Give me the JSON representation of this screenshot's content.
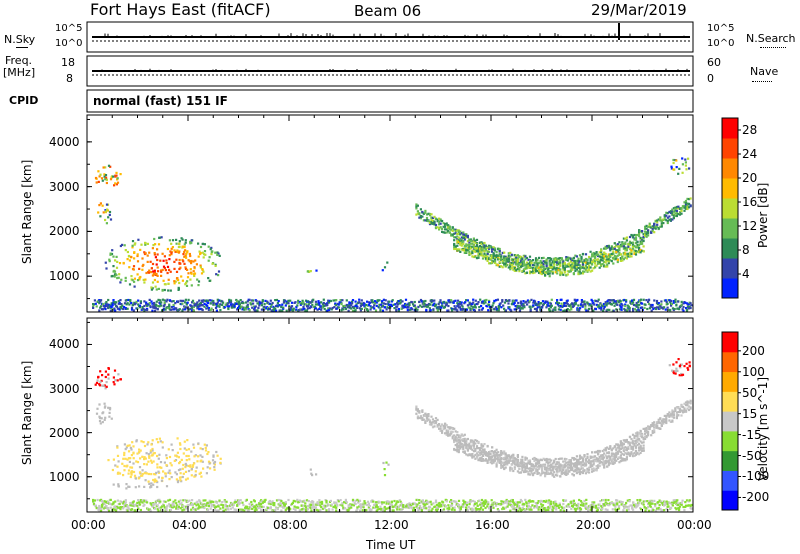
{
  "header": {
    "title": "Fort Hays East (fitACF)",
    "beam": "Beam 06",
    "date": "29/Mar/2019"
  },
  "top_panels": {
    "left_label_1": "N.Sky",
    "right_label_1": "N.Search",
    "left_ticks_1": [
      "10^5",
      "10^0"
    ],
    "right_ticks_1": [
      "10^5",
      "10^0"
    ],
    "left_label_2a": "Freq.",
    "left_label_2b": "[MHz]",
    "left_ticks_2": [
      "18",
      "8"
    ],
    "right_ticks_2": [
      "60",
      "0"
    ],
    "right_label_2": "Nave",
    "cpid_label": "CPID",
    "cpid_text": "normal (fast) 151 IF"
  },
  "colors": {
    "velocity_scale": [
      "#ff0000",
      "#ff6600",
      "#ffaa00",
      "#ffdd55",
      "#c8c8c8",
      "#88dd33",
      "#339933",
      "#3355ff",
      "#0000ff"
    ],
    "power_scale": [
      "#0022ff",
      "#3344aa",
      "#2e8b57",
      "#66bb55",
      "#bbdd33",
      "#ffbb00",
      "#ff8800",
      "#ff4400",
      "#ff0000"
    ],
    "ground_scatter": "#bbbbbb"
  },
  "chart_data": [
    {
      "type": "heatmap",
      "title": "Power",
      "xlabel": "",
      "ylabel": "Slant Range [km]",
      "x_ticks": [
        "00:00",
        "04:00",
        "08:00",
        "12:00",
        "16:00",
        "20:00",
        "00:00"
      ],
      "y_ticks": [
        "1000",
        "2000",
        "3000",
        "4000"
      ],
      "ylim": [
        200,
        4600
      ],
      "xlim_hours": [
        0,
        24
      ],
      "colorbar_label": "Power [dB]",
      "colorbar_ticks": [
        "4",
        "8",
        "12",
        "16",
        "20",
        "24",
        "28"
      ],
      "colorbar_range": [
        0,
        30
      ],
      "regions": [
        {
          "t0": 0.7,
          "t1": 5.3,
          "r0": 700,
          "r1": 1900,
          "value": 26,
          "profile": "hot"
        },
        {
          "t0": 0.2,
          "t1": 1.3,
          "r0": 3000,
          "r1": 3500,
          "value": 17,
          "profile": "mixed"
        },
        {
          "t0": 0.3,
          "t1": 1.0,
          "r0": 2200,
          "r1": 2700,
          "value": 12,
          "profile": "mixed"
        },
        {
          "t0": 8.7,
          "t1": 9.1,
          "r0": 1050,
          "r1": 1250,
          "value": 12,
          "profile": "mixed"
        },
        {
          "t0": 11.6,
          "t1": 11.95,
          "r0": 1050,
          "r1": 1350,
          "value": 12,
          "profile": "mixed"
        },
        {
          "t0": 23.0,
          "t1": 23.9,
          "r0": 3300,
          "r1": 3700,
          "value": 8,
          "profile": "mixed"
        }
      ],
      "arcs": [
        {
          "t0": 13.0,
          "t1": 23.9,
          "r_start": 2500,
          "r_min": 1300,
          "t_min": 18.3,
          "r_end": 2700,
          "value": 10
        },
        {
          "t0": 14.5,
          "t1": 22.0,
          "r_start": 1750,
          "r_min": 1150,
          "t_min": 18.5,
          "r_end": 1700,
          "value": 12
        }
      ],
      "near_range_band": {
        "r0": 250,
        "r1": 500,
        "value": 6
      }
    },
    {
      "type": "heatmap",
      "title": "Velocity",
      "xlabel": "Time UT",
      "ylabel": "Slant Range [km]",
      "x_ticks": [
        "00:00",
        "04:00",
        "08:00",
        "12:00",
        "16:00",
        "20:00",
        "00:00"
      ],
      "y_ticks": [
        "1000",
        "2000",
        "3000",
        "4000"
      ],
      "ylim": [
        200,
        4600
      ],
      "xlim_hours": [
        0,
        24
      ],
      "colorbar_label": "Velocity [m s^-1]",
      "colorbar_ticks": [
        "200",
        "100",
        "50",
        "15",
        "-15",
        "-50",
        "-100",
        "-200"
      ],
      "colorbar_range": [
        -250,
        250
      ],
      "regions": [
        {
          "t0": 0.7,
          "t1": 5.3,
          "r0": 900,
          "r1": 1900,
          "value": 40,
          "profile": "mixed"
        },
        {
          "t0": 0.9,
          "t1": 3.3,
          "r0": 750,
          "r1": 900,
          "value": 0,
          "profile": "ground"
        },
        {
          "t0": 0.2,
          "t1": 1.3,
          "r0": 3000,
          "r1": 3500,
          "value": 220,
          "profile": "mixed"
        },
        {
          "t0": 0.3,
          "t1": 1.0,
          "r0": 2200,
          "r1": 2700,
          "value": 0,
          "profile": "ground"
        },
        {
          "t0": 8.7,
          "t1": 9.1,
          "r0": 1050,
          "r1": 1250,
          "value": 0,
          "profile": "ground"
        },
        {
          "t0": 11.6,
          "t1": 11.95,
          "r0": 1050,
          "r1": 1350,
          "value": -40,
          "profile": "mixed"
        },
        {
          "t0": 23.0,
          "t1": 23.9,
          "r0": 3300,
          "r1": 3700,
          "value": 220,
          "profile": "mixed"
        }
      ],
      "arcs": [
        {
          "t0": 13.0,
          "t1": 23.9,
          "r_start": 2500,
          "r_min": 1300,
          "t_min": 18.3,
          "r_end": 2700,
          "value": 0
        },
        {
          "t0": 14.5,
          "t1": 22.0,
          "r_start": 1750,
          "r_min": 1150,
          "t_min": 18.5,
          "r_end": 1700,
          "value": 0
        }
      ],
      "near_range_band": {
        "r0": 250,
        "r1": 500,
        "value": -30
      }
    }
  ]
}
